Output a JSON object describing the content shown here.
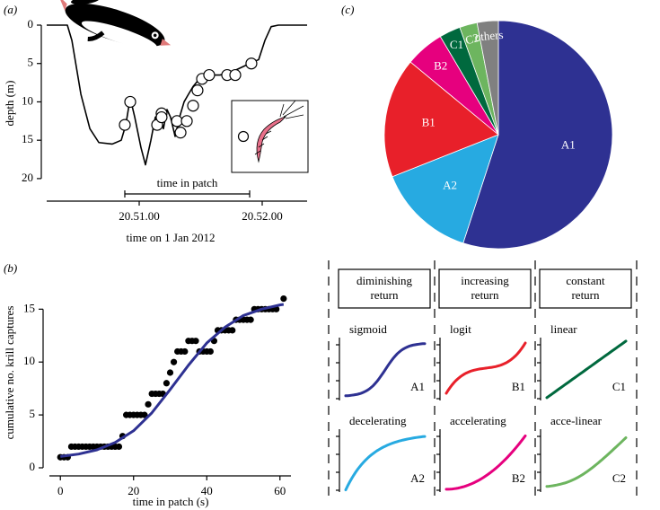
{
  "chart_data": [
    {
      "type": "line",
      "panel": "(a)",
      "xlabel": "time on 1 Jan 2012",
      "ylabel": "depth (m)",
      "xlim": [
        1250.248,
        1252.365
      ],
      "ylim": [
        0,
        22
      ],
      "inverted_y": true,
      "xticks": [
        {
          "value": 1251,
          "label": "20.51.00"
        },
        {
          "value": 1252,
          "label": "20.52.00"
        }
      ],
      "yticks": [
        0,
        5,
        10,
        15,
        20
      ],
      "series": [
        {
          "type": "line",
          "color": "#000000",
          "x": [
            1250.248,
            1250.416,
            1250.453,
            1250.526,
            1250.599,
            1250.672,
            1250.781,
            1250.854,
            1250.891,
            1250.927,
            1250.964,
            1251.015,
            1251.051,
            1251.095,
            1251.131,
            1251.168,
            1251.197,
            1251.226,
            1251.255,
            1251.292,
            1251.328,
            1251.365,
            1251.401,
            1251.438,
            1251.489,
            1251.562,
            1251.657,
            1251.766,
            1251.898,
            1251.971,
            1252.022,
            1252.073,
            1252.131,
            1252.365
          ],
          "values": [
            0,
            0,
            2,
            9,
            13.5,
            15.3,
            15.5,
            15,
            13,
            9.5,
            12,
            16,
            18.2,
            15,
            12,
            11.5,
            13.5,
            11,
            12,
            14.5,
            12,
            10,
            9,
            8,
            7,
            6.5,
            6.5,
            6,
            5,
            4.5,
            2,
            0.2,
            0,
            0
          ]
        },
        {
          "type": "scatter",
          "color": "#000000",
          "x": [
            1250.883,
            1250.927,
            1251.146,
            1251.182,
            1251.182,
            1251.307,
            1251.336,
            1251.387,
            1251.438,
            1251.474,
            1251.511,
            1251.569,
            1251.715,
            1251.781,
            1251.912
          ],
          "values": [
            13,
            10,
            13,
            11.5,
            12,
            12.5,
            14,
            12.5,
            10.5,
            8.5,
            7,
            6.5,
            6.5,
            6.5,
            5
          ]
        }
      ],
      "annotation": {
        "text": "time in patch",
        "x": [
          1250.883,
          1251.898
        ]
      }
    },
    {
      "type": "scatter",
      "panel": "(b)",
      "xlabel": "time in patch (s)",
      "ylabel": "cumulative no. krill captures",
      "xlim": [
        -3,
        63
      ],
      "ylim": [
        0,
        18
      ],
      "xticks": [
        0,
        20,
        40,
        60
      ],
      "yticks": [
        0,
        5,
        10,
        15
      ],
      "series": [
        {
          "type": "scatter",
          "color": "#000000",
          "x": [
            0,
            1,
            2,
            3,
            4,
            5,
            6,
            7,
            8,
            9,
            10,
            11,
            12,
            13,
            14,
            15,
            16,
            17,
            18,
            19,
            20,
            21,
            22,
            23,
            24,
            25,
            26,
            27,
            28,
            29,
            30,
            31,
            32,
            33,
            34,
            35,
            36,
            37,
            38,
            39,
            40,
            41,
            42,
            43,
            44,
            45,
            46,
            47,
            48,
            49,
            50,
            51,
            52,
            53,
            54,
            55,
            56,
            57,
            58,
            59,
            61
          ],
          "values": [
            1,
            1,
            1,
            2,
            2,
            2,
            2,
            2,
            2,
            2,
            2,
            2,
            2,
            2,
            2,
            2,
            2,
            3,
            5,
            5,
            5,
            5,
            5,
            5,
            6,
            7,
            7,
            7,
            7,
            8,
            9,
            10,
            11,
            11,
            11,
            12,
            12,
            12,
            11,
            11,
            11,
            11,
            12,
            13,
            13,
            13,
            13,
            13,
            14,
            14,
            14,
            14,
            14,
            15,
            15,
            15,
            15,
            15,
            15,
            15,
            16
          ]
        },
        {
          "type": "line",
          "color": "#2e3192",
          "x": [
            0,
            5,
            10,
            15,
            20,
            25,
            30,
            35,
            40,
            45,
            50,
            55,
            60,
            61
          ],
          "values": [
            1.07,
            1.3,
            1.7,
            2.4,
            3.5,
            5.2,
            7.4,
            9.7,
            11.8,
            13.3,
            14.4,
            15.0,
            15.4,
            15.45
          ]
        }
      ]
    },
    {
      "type": "pie",
      "panel": "(c)",
      "categories": [
        "A1",
        "A2",
        "B1",
        "B2",
        "C1",
        "C2",
        "others"
      ],
      "values": [
        55,
        14,
        17,
        5.5,
        3,
        2.5,
        3
      ],
      "colors": [
        "#2e3192",
        "#27aae1",
        "#e8202a",
        "#e6007e",
        "#00693e",
        "#6db55f",
        "#808080"
      ]
    }
  ],
  "model_panel": {
    "headers": [
      [
        "diminishing",
        "return"
      ],
      [
        "increasing",
        "return"
      ],
      [
        "constant",
        "return"
      ]
    ],
    "cells": [
      [
        {
          "name": "sigmoid",
          "code": "A1",
          "color": "#2e3192"
        },
        {
          "name": "logit",
          "code": "B1",
          "color": "#e8202a"
        },
        {
          "name": "linear",
          "code": "C1",
          "color": "#00693e"
        }
      ],
      [
        {
          "name": "decelerating",
          "code": "A2",
          "color": "#27aae1"
        },
        {
          "name": "accelerating",
          "code": "B2",
          "color": "#e6007e"
        },
        {
          "name": "acce-linear",
          "code": "C2",
          "color": "#6db55f"
        }
      ]
    ]
  }
}
